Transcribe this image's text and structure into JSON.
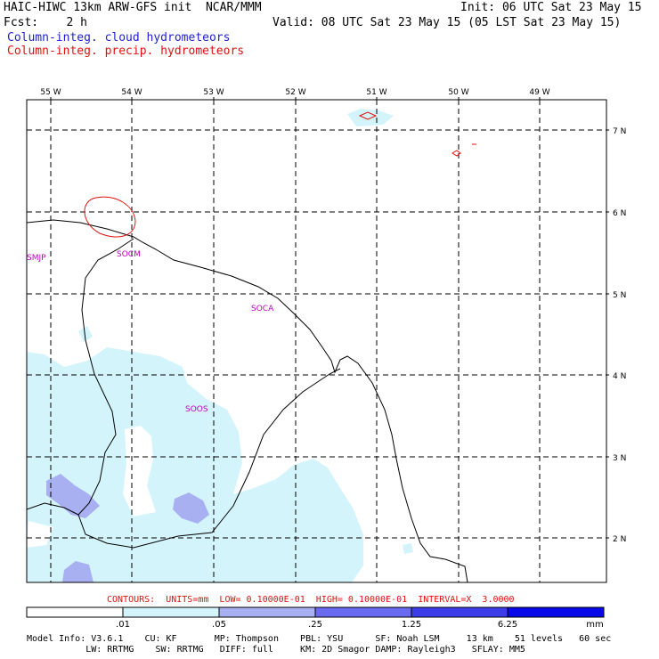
{
  "header": {
    "title_left": "HAIC-HIWC 13km ARW-GFS init  NCAR/MMM",
    "fcst": "Fcst:    2 h",
    "init": "Init: 06 UTC Sat 23 May 15",
    "valid": "Valid: 08 UTC Sat 23 May 15 (05 LST Sat 23 May 15)",
    "field1": "Column-integ. cloud hydrometeors",
    "field2": "Column-integ. precip. hydrometeors"
  },
  "colors": {
    "field1": "#1f1fd0",
    "field2": "#e01010",
    "contour_text": "#e01010",
    "site_labels": "#c000c0",
    "shade_1": "#d4f4fb",
    "shade_2": "#a8b0f2",
    "shade_3": "#6a6af0",
    "shade_4": "#3c3ce8",
    "shade_5": "#0808e8"
  },
  "map": {
    "lon_labels": [
      "55 W",
      "54 W",
      "53 W",
      "52 W",
      "51 W",
      "50 W",
      "49 W"
    ],
    "lat_labels": [
      "7 N",
      "6 N",
      "5 N",
      "4 N",
      "3 N",
      "2 N"
    ],
    "site_labels": [
      "SMJP",
      "SOCM",
      "SOCA",
      "SOOS"
    ]
  },
  "contour_info": "CONTOURS:  UNITS=mm  LOW= 0.10000E-01  HIGH= 0.10000E-01  INTERVAL=X  3.0000",
  "colorbar": {
    "ticks": [
      ".01",
      ".05",
      ".25",
      "1.25",
      "6.25"
    ],
    "units": "mm"
  },
  "model_info": {
    "line1": "Model Info: V3.6.1    CU: KF       MP: Thompson    PBL: YSU      SF: Noah LSM     13 km    51 levels   60 sec",
    "line2": "           LW: RRTMG    SW: RRTMG   DIFF: full     KM: 2D Smagor DAMP: Rayleigh3   SFLAY: MM5"
  }
}
